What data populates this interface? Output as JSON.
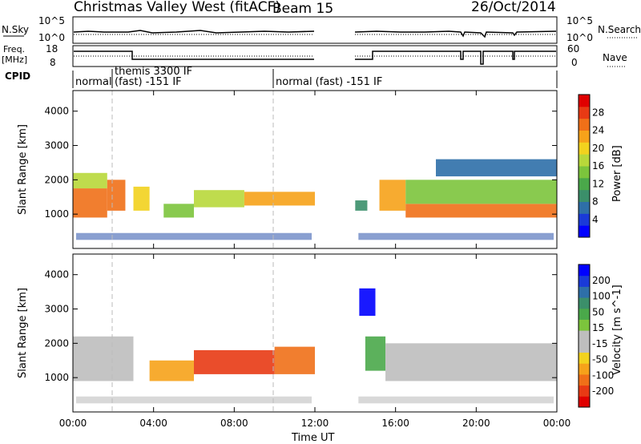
{
  "header": {
    "site": "Christmas Valley West (fitACF)",
    "beam": "Beam 15",
    "date": "26/Oct/2014"
  },
  "top_panels": {
    "nsky_label": "N.Sky",
    "nsky_ticks": [
      "10^5",
      "10^0"
    ],
    "nsearch_label": "N.Search",
    "nsearch_ticks": [
      "10^5",
      "10^0"
    ],
    "freq_label": "Freq.",
    "freq_unit": "[MHz]",
    "freq_ticks": [
      "18",
      "8"
    ],
    "nave_label": "Nave",
    "nave_ticks": [
      "60",
      "0"
    ],
    "cpid_label": "CPID"
  },
  "cpid_segments": [
    {
      "start": 0,
      "text": "normal"
    },
    {
      "start": 2,
      "text": "themis 3300 IF"
    },
    {
      "start": 2,
      "text": "(fast) -151 IF"
    },
    {
      "start": 10,
      "text": "normal (fast) -151 IF"
    }
  ],
  "axes": {
    "ylabel": "Slant Range [km]",
    "xlabel": "Time UT",
    "x_ticks": [
      "00:00",
      "04:00",
      "08:00",
      "12:00",
      "16:00",
      "20:00",
      "00:00"
    ],
    "y_ticks": [
      "1000",
      "2000",
      "3000",
      "4000"
    ]
  },
  "colorbars": {
    "power": {
      "label": "Power [dB]",
      "ticks": [
        "4",
        "8",
        "12",
        "16",
        "20",
        "24",
        "28"
      ],
      "colors": [
        "#0000ff",
        "#1a3ad8",
        "#2e6fa8",
        "#3b8f6a",
        "#4aa84a",
        "#7cc43c",
        "#b8d83a",
        "#f2d21e",
        "#f6a21a",
        "#f07018",
        "#e83a14",
        "#e00000"
      ]
    },
    "velocity": {
      "label": "Velocity [m s^-1]",
      "ticks": [
        "200",
        "100",
        "50",
        "15",
        "-15",
        "-50",
        "-100",
        "-200"
      ],
      "colors": [
        "#0000ff",
        "#1a3ad8",
        "#2e6fa8",
        "#3b8f6a",
        "#4aa84a",
        "#7cc43c",
        "#bebebe",
        "#bebebe",
        "#f2d21e",
        "#f6a21a",
        "#f07018",
        "#e83a14",
        "#e00000"
      ]
    }
  },
  "chart_data": [
    {
      "type": "heatmap",
      "title": "Power",
      "x_unit": "hours UT",
      "xlim": [
        0,
        24
      ],
      "ylim": [
        0,
        4600
      ],
      "ylabel": "Slant Range [km]",
      "colorbar_label": "Power [dB]",
      "data_gaps_hours": [
        [
          12,
          14
        ]
      ],
      "bands": [
        {
          "t0": 0.0,
          "t1": 1.7,
          "r0": 900,
          "r1": 1750,
          "value": 26
        },
        {
          "t0": 0.0,
          "t1": 1.7,
          "r0": 1750,
          "r1": 2200,
          "value": 18
        },
        {
          "t0": 1.7,
          "t1": 2.6,
          "r0": 1100,
          "r1": 2000,
          "value": 24
        },
        {
          "t0": 3.0,
          "t1": 3.8,
          "r0": 1100,
          "r1": 1800,
          "value": 20
        },
        {
          "t0": 4.5,
          "t1": 6.0,
          "r0": 900,
          "r1": 1300,
          "value": 14
        },
        {
          "t0": 6.0,
          "t1": 8.5,
          "r0": 1200,
          "r1": 1700,
          "value": 18
        },
        {
          "t0": 8.5,
          "t1": 12.0,
          "r0": 1250,
          "r1": 1650,
          "value": 22
        },
        {
          "t0": 14.0,
          "t1": 14.6,
          "r0": 1100,
          "r1": 1400,
          "value": 10
        },
        {
          "t0": 15.2,
          "t1": 16.5,
          "r0": 1100,
          "r1": 2000,
          "value": 22
        },
        {
          "t0": 16.5,
          "t1": 24.0,
          "r0": 900,
          "r1": 1300,
          "value": 26
        },
        {
          "t0": 16.5,
          "t1": 24.0,
          "r0": 1300,
          "r1": 2000,
          "value": 14
        },
        {
          "t0": 18.0,
          "t1": 24.0,
          "r0": 2100,
          "r1": 2600,
          "value": 6
        }
      ]
    },
    {
      "type": "heatmap",
      "title": "Velocity",
      "x_unit": "hours UT",
      "xlim": [
        0,
        24
      ],
      "ylim": [
        0,
        4600
      ],
      "ylabel": "Slant Range [km]",
      "colorbar_label": "Velocity [m s^-1]",
      "data_gaps_hours": [
        [
          12,
          14
        ]
      ],
      "bands": [
        {
          "t0": 0.0,
          "t1": 3.0,
          "r0": 900,
          "r1": 2200,
          "value": 0
        },
        {
          "t0": 3.8,
          "t1": 6.0,
          "r0": 900,
          "r1": 1500,
          "value": -60
        },
        {
          "t0": 6.0,
          "t1": 10.0,
          "r0": 1100,
          "r1": 1800,
          "value": -150
        },
        {
          "t0": 10.0,
          "t1": 12.0,
          "r0": 1100,
          "r1": 1900,
          "value": -90
        },
        {
          "t0": 14.5,
          "t1": 15.5,
          "r0": 1200,
          "r1": 2200,
          "value": 40
        },
        {
          "t0": 15.5,
          "t1": 24.0,
          "r0": 900,
          "r1": 2000,
          "value": 0
        },
        {
          "t0": 14.2,
          "t1": 15.0,
          "r0": 2800,
          "r1": 3600,
          "value": 200
        }
      ]
    }
  ]
}
